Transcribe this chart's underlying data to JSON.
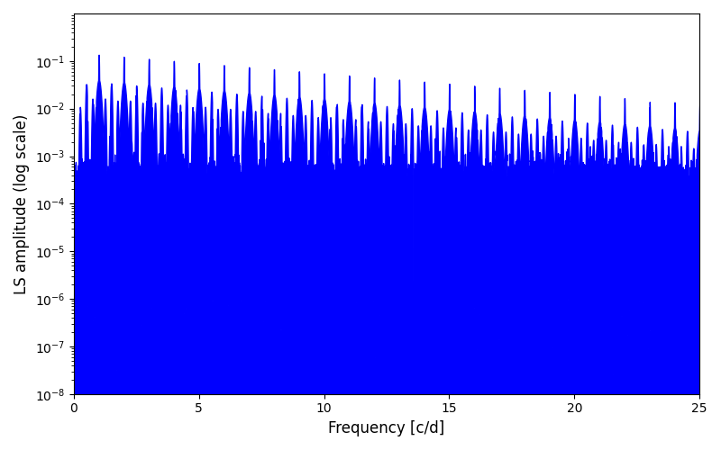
{
  "line_color": "#0000ff",
  "xlabel": "Frequency [c/d]",
  "ylabel": "LS amplitude (log scale)",
  "xlim": [
    0,
    25
  ],
  "ylim": [
    1e-08,
    1.0
  ],
  "yscale": "log",
  "figsize": [
    8.0,
    5.0
  ],
  "dpi": 100,
  "yticks": [
    1e-08,
    1e-07,
    1e-06,
    1e-05,
    0.0001,
    0.001,
    0.01,
    0.1
  ],
  "xticks": [
    0,
    5,
    10,
    15,
    20,
    25
  ],
  "background_color": "#ffffff",
  "freq_max": 25.0,
  "num_points": 10000
}
